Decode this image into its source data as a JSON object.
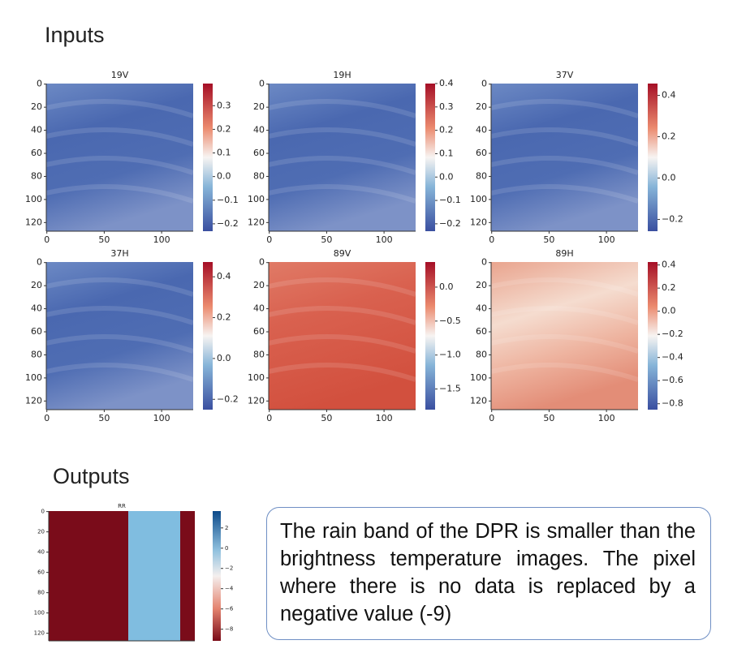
{
  "inputs_title": "Inputs",
  "outputs_title": "Outputs",
  "panels": [
    {
      "title": "19V",
      "xticks": [
        "0",
        "50",
        "100"
      ],
      "yticks": [
        "0",
        "20",
        "40",
        "60",
        "80",
        "100",
        "120"
      ],
      "colorbar": [
        "0.3",
        "0.2",
        "0.1",
        "0.0",
        "−0.1",
        "−0.2"
      ]
    },
    {
      "title": "19H",
      "xticks": [
        "0",
        "50",
        "100"
      ],
      "yticks": [
        "0",
        "20",
        "40",
        "60",
        "80",
        "100",
        "120"
      ],
      "colorbar": [
        "0.4",
        "0.3",
        "0.2",
        "0.1",
        "0.0",
        "−0.1",
        "−0.2"
      ]
    },
    {
      "title": "37V",
      "xticks": [
        "0",
        "50",
        "100"
      ],
      "yticks": [
        "0",
        "20",
        "40",
        "60",
        "80",
        "100",
        "120"
      ],
      "colorbar": [
        "0.4",
        "0.2",
        "0.0",
        "−0.2"
      ]
    },
    {
      "title": "37H",
      "xticks": [
        "0",
        "50",
        "100"
      ],
      "yticks": [
        "0",
        "20",
        "40",
        "60",
        "80",
        "100",
        "120"
      ],
      "colorbar": [
        "0.4",
        "0.2",
        "0.0",
        "−0.2"
      ]
    },
    {
      "title": "89V",
      "xticks": [
        "0",
        "50",
        "100"
      ],
      "yticks": [
        "0",
        "20",
        "40",
        "60",
        "80",
        "100",
        "120"
      ],
      "colorbar": [
        "0.0",
        "−0.5",
        "−1.0",
        "−1.5"
      ]
    },
    {
      "title": "89H",
      "xticks": [
        "0",
        "50",
        "100"
      ],
      "yticks": [
        "0",
        "20",
        "40",
        "60",
        "80",
        "100",
        "120"
      ],
      "colorbar": [
        "0.4",
        "0.2",
        "0.0",
        "−0.2",
        "−0.4",
        "−0.6",
        "−0.8"
      ]
    }
  ],
  "output_panel": {
    "title": "RR",
    "yticks": [
      "0",
      "20",
      "40",
      "60",
      "80",
      "100",
      "120"
    ],
    "colorbar": [
      "2",
      "0",
      "−2",
      "−4",
      "−6",
      "−8"
    ]
  },
  "note": "The rain band of the DPR is smaller than the brightness temperature images. The pixel where there is no data is replaced by a negative value (-9)"
}
